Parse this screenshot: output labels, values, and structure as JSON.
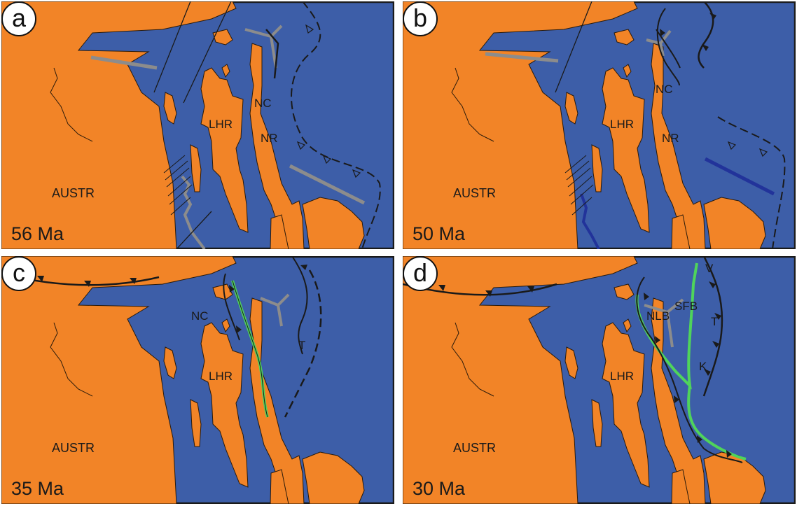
{
  "colors": {
    "ocean": "#3d5ea8",
    "land": "#f28427",
    "coast_line": "#2a1a0a",
    "frame": "#1a1a1a",
    "spreading_ridge": "#8c8c8c",
    "extinct_ridge_dark": "#22339a",
    "fault": "#1a1a1a",
    "green_boundary": "#4fd45b",
    "badge_bg": "#ffffff"
  },
  "symbols": {
    "open_triangle": "open-triangle-barb",
    "filled_triangle": "filled-triangle-barb"
  },
  "panels": [
    {
      "id": "a",
      "letter": "a",
      "age": "56 Ma",
      "labels": {
        "austr": "AUSTR",
        "lhr": "LHR",
        "nr": "NR",
        "nc": "NC"
      }
    },
    {
      "id": "b",
      "letter": "b",
      "age": "50 Ma",
      "labels": {
        "austr": "AUSTR",
        "lhr": "LHR",
        "nr": "NR",
        "nc": "NC"
      }
    },
    {
      "id": "c",
      "letter": "c",
      "age": "35 Ma",
      "labels": {
        "austr": "AUSTR",
        "lhr": "LHR",
        "nc": "NC",
        "t": "T"
      }
    },
    {
      "id": "d",
      "letter": "d",
      "age": "30 Ma",
      "labels": {
        "austr": "AUSTR",
        "lhr": "LHR",
        "nlb": "NLB",
        "sfb": "SFB",
        "v": "V",
        "t": "T",
        "k": "K"
      }
    }
  ]
}
